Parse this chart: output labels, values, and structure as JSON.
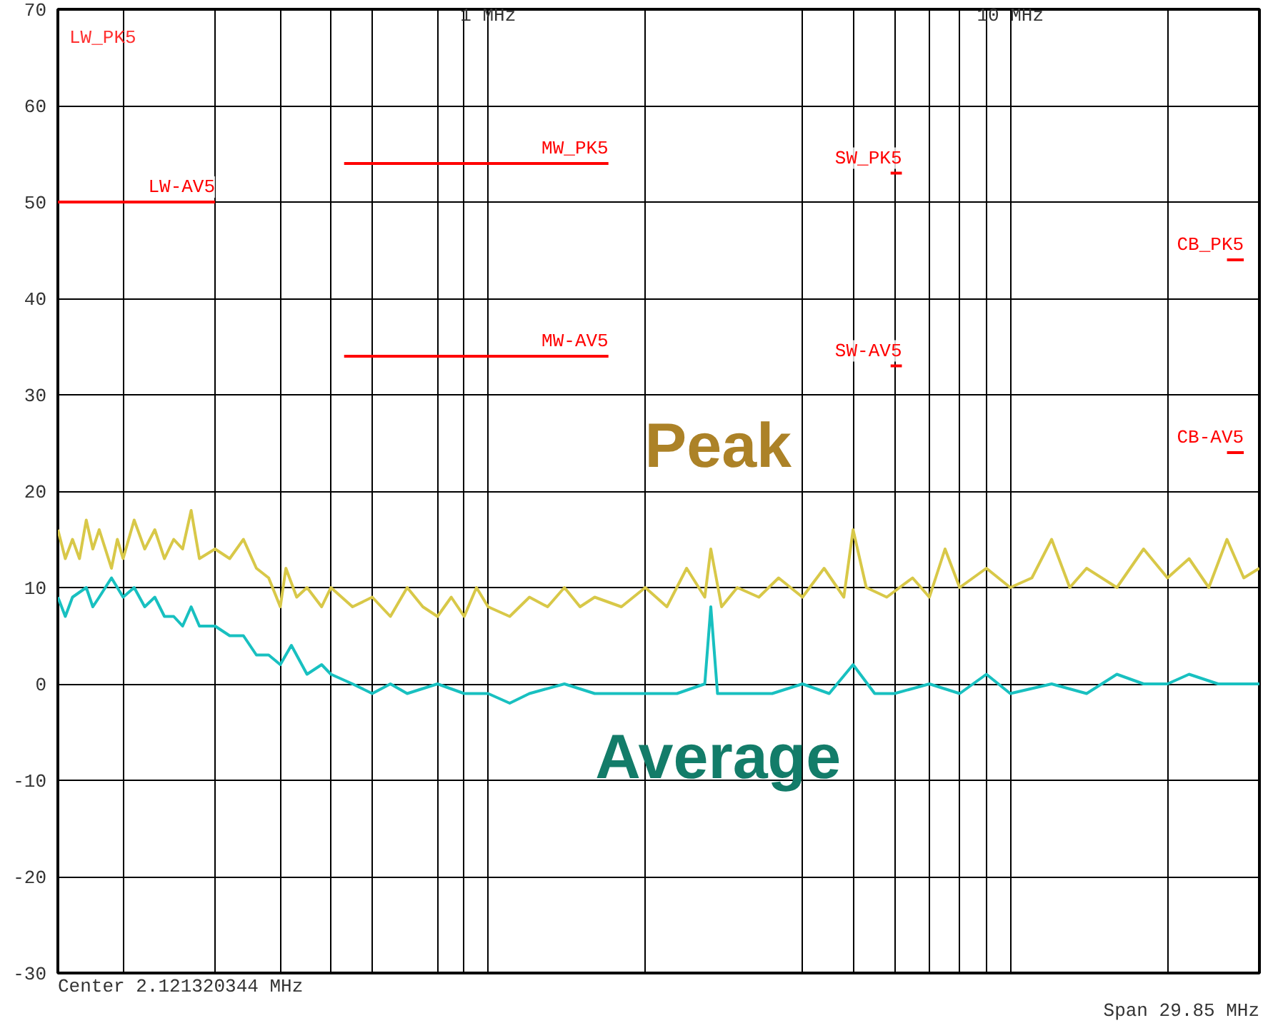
{
  "chart_data": {
    "type": "line",
    "log": "x",
    "grid": true,
    "line_style": "solid",
    "marker": "none",
    "xlim": [
      0.15,
      30
    ],
    "ylim": [
      -30,
      70
    ],
    "xticks": [
      {
        "value": 0.2,
        "label": null
      },
      {
        "value": 0.3,
        "label": null
      },
      {
        "value": 0.4,
        "label": null
      },
      {
        "value": 0.5,
        "label": null
      },
      {
        "value": 0.6,
        "label": null
      },
      {
        "value": 0.8,
        "label": null
      },
      {
        "value": 0.9,
        "label": null
      },
      {
        "value": 1,
        "label": "1 MHz"
      },
      {
        "value": 2,
        "label": null
      },
      {
        "value": 4,
        "label": null
      },
      {
        "value": 5,
        "label": null
      },
      {
        "value": 6,
        "label": null
      },
      {
        "value": 7,
        "label": null
      },
      {
        "value": 8,
        "label": null
      },
      {
        "value": 9,
        "label": null
      },
      {
        "value": 10,
        "label": "10 MHz"
      },
      {
        "value": 20,
        "label": null
      }
    ],
    "yticks": [
      -30,
      -20,
      -10,
      0,
      10,
      20,
      30,
      40,
      50,
      60,
      70
    ],
    "series": [
      {
        "name": "Peak",
        "color": "#d8c848",
        "x": [
          0.15,
          0.155,
          0.16,
          0.165,
          0.17,
          0.175,
          0.18,
          0.19,
          0.195,
          0.2,
          0.21,
          0.22,
          0.23,
          0.24,
          0.25,
          0.26,
          0.27,
          0.28,
          0.3,
          0.32,
          0.34,
          0.36,
          0.38,
          0.4,
          0.41,
          0.43,
          0.45,
          0.48,
          0.5,
          0.55,
          0.6,
          0.65,
          0.7,
          0.75,
          0.8,
          0.85,
          0.9,
          0.95,
          1.0,
          1.1,
          1.2,
          1.3,
          1.4,
          1.5,
          1.6,
          1.8,
          2.0,
          2.2,
          2.4,
          2.6,
          2.67,
          2.8,
          3.0,
          3.3,
          3.6,
          4.0,
          4.4,
          4.8,
          5.0,
          5.3,
          5.8,
          6.5,
          7.0,
          7.5,
          8.0,
          9.0,
          10,
          11,
          12,
          13,
          14,
          16,
          18,
          20,
          22,
          24,
          26,
          28,
          30
        ],
        "values": [
          16,
          13,
          15,
          13,
          17,
          14,
          16,
          12,
          15,
          13,
          17,
          14,
          16,
          13,
          15,
          14,
          18,
          13,
          14,
          13,
          15,
          12,
          11,
          8,
          12,
          9,
          10,
          8,
          10,
          8,
          9,
          7,
          10,
          8,
          7,
          9,
          7,
          10,
          8,
          7,
          9,
          8,
          10,
          8,
          9,
          8,
          10,
          8,
          12,
          9,
          14,
          8,
          10,
          9,
          11,
          9,
          12,
          9,
          16,
          10,
          9,
          11,
          9,
          14,
          10,
          12,
          10,
          11,
          15,
          10,
          12,
          10,
          14,
          11,
          13,
          10,
          15,
          11,
          12
        ]
      },
      {
        "name": "Average",
        "color": "#18c0c0",
        "x": [
          0.15,
          0.155,
          0.16,
          0.17,
          0.175,
          0.18,
          0.19,
          0.2,
          0.21,
          0.22,
          0.23,
          0.24,
          0.25,
          0.26,
          0.27,
          0.28,
          0.3,
          0.32,
          0.34,
          0.36,
          0.38,
          0.4,
          0.42,
          0.45,
          0.48,
          0.5,
          0.55,
          0.6,
          0.65,
          0.7,
          0.8,
          0.9,
          1.0,
          1.1,
          1.2,
          1.4,
          1.6,
          1.8,
          2.0,
          2.3,
          2.6,
          2.67,
          2.75,
          3.0,
          3.5,
          4.0,
          4.5,
          5.0,
          5.5,
          6.0,
          7.0,
          8.0,
          9.0,
          10,
          12,
          14,
          16,
          18,
          20,
          22,
          25,
          28,
          30
        ],
        "values": [
          9,
          7,
          9,
          10,
          8,
          9,
          11,
          9,
          10,
          8,
          9,
          7,
          7,
          6,
          8,
          6,
          6,
          5,
          5,
          3,
          3,
          2,
          4,
          1,
          2,
          1,
          0,
          -1,
          0,
          -1,
          0,
          -1,
          -1,
          -2,
          -1,
          0,
          -1,
          -1,
          -1,
          -1,
          0,
          8,
          -1,
          -1,
          -1,
          0,
          -1,
          2,
          -1,
          -1,
          0,
          -1,
          1,
          -1,
          0,
          -1,
          1,
          0,
          0,
          1,
          0,
          0,
          0
        ]
      },
      {
        "name": "LW-AV5",
        "color": "#ff0000",
        "x": [
          0.15,
          0.3
        ],
        "values": [
          50,
          50
        ]
      },
      {
        "name": "MW_PK5",
        "color": "#ff0000",
        "x": [
          0.53,
          1.7
        ],
        "values": [
          54,
          54
        ]
      },
      {
        "name": "MW-AV5",
        "color": "#ff0000",
        "x": [
          0.53,
          1.7
        ],
        "values": [
          34,
          34
        ]
      },
      {
        "name": "SW_PK5",
        "color": "#ff0000",
        "x": [
          5.9,
          6.2
        ],
        "values": [
          53,
          53
        ]
      },
      {
        "name": "SW-AV5",
        "color": "#ff0000",
        "x": [
          5.9,
          6.2
        ],
        "values": [
          33,
          33
        ]
      },
      {
        "name": "CB_PK5",
        "color": "#ff0000",
        "x": [
          26,
          28
        ],
        "values": [
          44,
          44
        ]
      },
      {
        "name": "CB-AV5",
        "color": "#ff0000",
        "x": [
          26,
          28
        ],
        "values": [
          24,
          24
        ]
      }
    ],
    "annotations": [
      "LW_PK5",
      "Center 2.121320344 MHz",
      "Span 29.85 MHz"
    ]
  }
}
